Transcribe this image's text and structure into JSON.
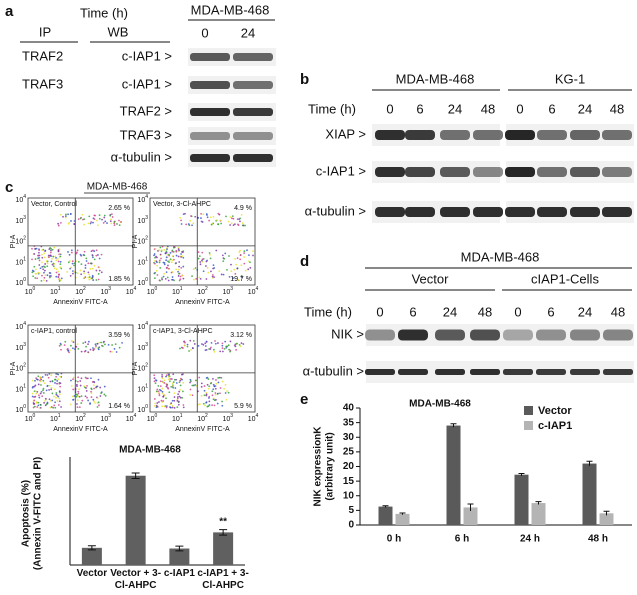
{
  "panel_a": {
    "label": "a",
    "time_label": "Time (h)",
    "cell_line": "MDA-MB-468",
    "times": [
      "0",
      "24"
    ],
    "ip_header": "IP",
    "wb_header": "WB",
    "ip_labels": [
      "TRAF2",
      "TRAF3"
    ],
    "wb_labels": [
      "c-IAP1 >",
      "c-IAP1 >",
      "TRAF2 >",
      "TRAF3 >",
      "α-tubulin >"
    ]
  },
  "panel_b": {
    "label": "b",
    "cell_lines": [
      "MDA-MB-468",
      "KG-1"
    ],
    "time_label": "Time (h)",
    "times": [
      "0",
      "6",
      "24",
      "48",
      "0",
      "6",
      "24",
      "48"
    ],
    "rows": [
      "XIAP >",
      "c-IAP1 >",
      "α-tubulin >"
    ]
  },
  "panel_c": {
    "label": "c",
    "cell_line": "MDA-MB-468",
    "x_axis_label": "AnnexinV FITC-A",
    "y_axis_label": "PI-A",
    "tick_base": "10",
    "tick_exponents": [
      "0",
      "1",
      "2",
      "3",
      "4"
    ],
    "plots": [
      {
        "title": "Vector, Control",
        "upper_right": "2.65 %",
        "lower_right": "1.85 %"
      },
      {
        "title": "Vector, 3-Cl-AHPC",
        "upper_right": "4.9 %",
        "lower_right": "19.7 %"
      },
      {
        "title": "c-IAP1, control",
        "upper_right": "3.59 %",
        "lower_right": "1.64 %"
      },
      {
        "title": "c-IAP1, 3-Cl-AHPC",
        "upper_right": "3.12 %",
        "lower_right": "5.9 %"
      }
    ]
  },
  "panel_d": {
    "label": "d",
    "cell_line": "MDA-MB-468",
    "groups": [
      "Vector",
      "cIAP1-Cells"
    ],
    "time_label": "Time (h)",
    "times": [
      "0",
      "6",
      "24",
      "48",
      "0",
      "6",
      "24",
      "48"
    ],
    "rows": [
      "NIK >",
      "α-tubulin >"
    ]
  },
  "panel_e": {
    "label": "e"
  },
  "chart_data": [
    {
      "type": "bar",
      "title": "MDA-MB-468",
      "ylabel": [
        "Apoptosis (%)",
        "(Annexin V-FITC and PI)"
      ],
      "categories": [
        "Vector",
        "Vector + 3-Cl-AHPC",
        "c-IAP1",
        "c-IAP1 + 3-Cl-AHPC"
      ],
      "values": [
        5,
        26,
        4.8,
        9.5
      ],
      "errors": [
        0.6,
        0.8,
        0.7,
        0.8
      ],
      "color": "#606060",
      "ylim": [
        0,
        30
      ],
      "annotation": "**"
    },
    {
      "type": "grouped_bar",
      "title": "MDA-MB-468",
      "ylabel": [
        "NIK expressionK",
        "(arbitrary unit)"
      ],
      "categories": [
        "0 h",
        "6 h",
        "24 h",
        "48 h"
      ],
      "series": [
        {
          "name": "Vector",
          "color": "#5a5a5a",
          "values": [
            6.3,
            34,
            17.2,
            21
          ],
          "errors": [
            0.3,
            0.6,
            0.4,
            0.8
          ]
        },
        {
          "name": "c-IAP1",
          "color": "#b4b4b4",
          "values": [
            3.8,
            6,
            7.5,
            4
          ],
          "errors": [
            0.3,
            1.2,
            0.5,
            0.7
          ]
        }
      ],
      "ylim": [
        0,
        40
      ],
      "yticks": [
        0,
        5,
        10,
        15,
        20,
        25,
        30,
        35,
        40
      ]
    }
  ]
}
